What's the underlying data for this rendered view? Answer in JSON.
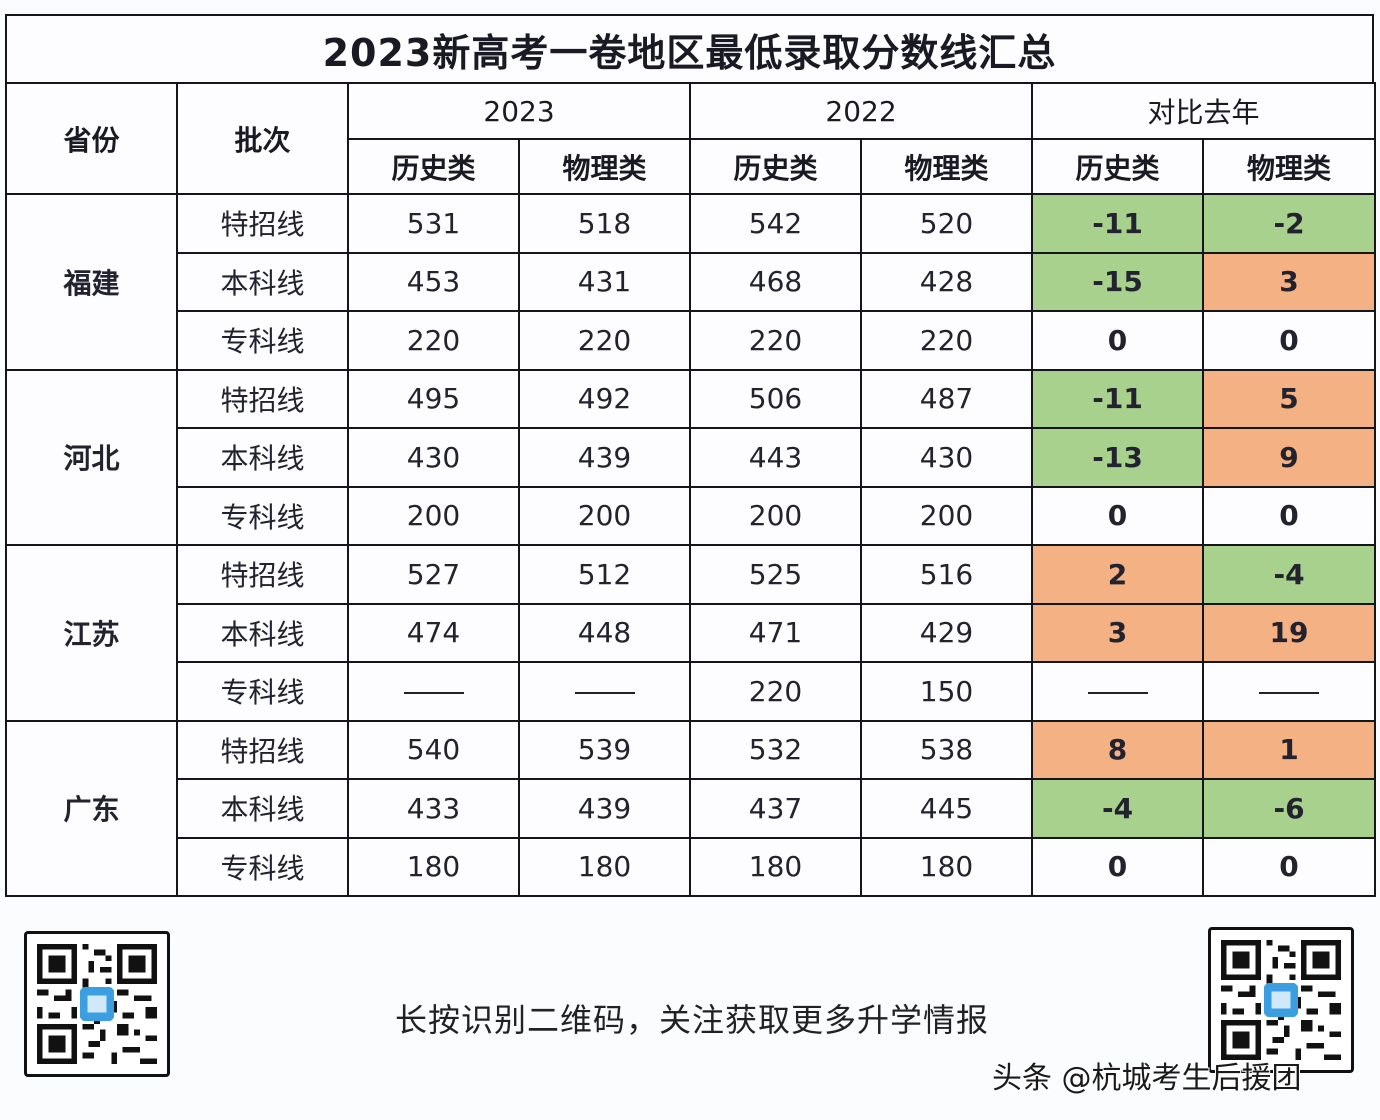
{
  "title": "2023新高考一卷地区最低录取分数线汇总",
  "headers": {
    "province": "省份",
    "batch": "批次",
    "groups": [
      "2023",
      "2022",
      "对比去年"
    ],
    "subjects": [
      "历史类",
      "物理类",
      "历史类",
      "物理类",
      "历史类",
      "物理类"
    ]
  },
  "colors": {
    "decrease": "#a9d18e",
    "increase": "#f4b183",
    "grid": "#15151c"
  },
  "provinces": [
    {
      "name": "福建",
      "rows": [
        {
          "batch": "特招线",
          "h2023": "531",
          "p2023": "518",
          "h2022": "542",
          "p2022": "520",
          "hdiff": "-11",
          "pdiff": "-2",
          "hcls": "down",
          "pcls": "down"
        },
        {
          "batch": "本科线",
          "h2023": "453",
          "p2023": "431",
          "h2022": "468",
          "p2022": "428",
          "hdiff": "-15",
          "pdiff": "3",
          "hcls": "down",
          "pcls": "up"
        },
        {
          "batch": "专科线",
          "h2023": "220",
          "p2023": "220",
          "h2022": "220",
          "p2022": "220",
          "hdiff": "0",
          "pdiff": "0",
          "hcls": "",
          "pcls": ""
        }
      ]
    },
    {
      "name": "河北",
      "rows": [
        {
          "batch": "特招线",
          "h2023": "495",
          "p2023": "492",
          "h2022": "506",
          "p2022": "487",
          "hdiff": "-11",
          "pdiff": "5",
          "hcls": "down",
          "pcls": "up"
        },
        {
          "batch": "本科线",
          "h2023": "430",
          "p2023": "439",
          "h2022": "443",
          "p2022": "430",
          "hdiff": "-13",
          "pdiff": "9",
          "hcls": "down",
          "pcls": "up"
        },
        {
          "batch": "专科线",
          "h2023": "200",
          "p2023": "200",
          "h2022": "200",
          "p2022": "200",
          "hdiff": "0",
          "pdiff": "0",
          "hcls": "",
          "pcls": ""
        }
      ]
    },
    {
      "name": "江苏",
      "rows": [
        {
          "batch": "特招线",
          "h2023": "527",
          "p2023": "512",
          "h2022": "525",
          "p2022": "516",
          "hdiff": "2",
          "pdiff": "-4",
          "hcls": "up",
          "pcls": "down"
        },
        {
          "batch": "本科线",
          "h2023": "474",
          "p2023": "448",
          "h2022": "471",
          "p2022": "429",
          "hdiff": "3",
          "pdiff": "19",
          "hcls": "up",
          "pcls": "up"
        },
        {
          "batch": "专科线",
          "h2023": "——",
          "p2023": "——",
          "h2022": "220",
          "p2022": "150",
          "hdiff": "——",
          "pdiff": "——",
          "hcls": "",
          "pcls": ""
        }
      ]
    },
    {
      "name": "广东",
      "rows": [
        {
          "batch": "特招线",
          "h2023": "540",
          "p2023": "539",
          "h2022": "532",
          "p2022": "538",
          "hdiff": "8",
          "pdiff": "1",
          "hcls": "up",
          "pcls": "up"
        },
        {
          "batch": "本科线",
          "h2023": "433",
          "p2023": "439",
          "h2022": "437",
          "p2022": "445",
          "hdiff": "-4",
          "pdiff": "-6",
          "hcls": "down",
          "pcls": "down"
        },
        {
          "batch": "专科线",
          "h2023": "180",
          "p2023": "180",
          "h2022": "180",
          "p2022": "180",
          "hdiff": "0",
          "pdiff": "0",
          "hcls": "",
          "pcls": ""
        }
      ]
    }
  ],
  "footer": {
    "cta": "长按识别二维码，关注获取更多升学情报",
    "watermark": "头条 @杭城考生后援团",
    "qr_icon": "qr-code-icon"
  }
}
